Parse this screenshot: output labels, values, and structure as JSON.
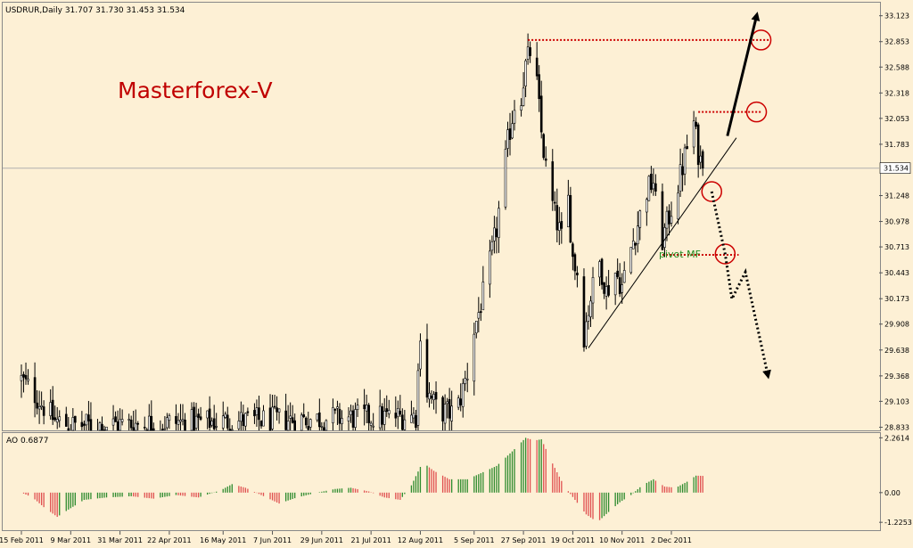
{
  "header": {
    "symbol_info": "USDRUR,Daily  31.707 31.730 31.453 31.534",
    "watermark": "Masterforex-V",
    "pivot_label": "pivot MF",
    "ao_label": "AO 0.6877"
  },
  "colors": {
    "background": "#fdf0d5",
    "candle": "#000000",
    "level_line": "#cc0000",
    "pivot_text": "#1e8a1e",
    "ao_up": "#2e8b2e",
    "ao_down": "#e05050",
    "watermark": "#c00000"
  },
  "chart_data": [
    {
      "type": "candlestick",
      "symbol": "USDRUR",
      "timeframe": "Daily",
      "last_quote": {
        "open": 31.707,
        "high": 31.73,
        "low": 31.453,
        "close": 31.534
      },
      "current_price_label": "31.534",
      "ylim": [
        28.8,
        33.25
      ],
      "y_ticks": [
        {
          "value": 33.123,
          "label": "33.123"
        },
        {
          "value": 32.853,
          "label": "32.853"
        },
        {
          "value": 32.588,
          "label": "32.588"
        },
        {
          "value": 32.318,
          "label": "32.318"
        },
        {
          "value": 32.053,
          "label": "32.053"
        },
        {
          "value": 31.783,
          "label": "31.783"
        },
        {
          "value": 31.248,
          "label": "31.248"
        },
        {
          "value": 30.978,
          "label": "30.978"
        },
        {
          "value": 30.713,
          "label": "30.713"
        },
        {
          "value": 30.443,
          "label": "30.443"
        },
        {
          "value": 30.173,
          "label": "30.173"
        },
        {
          "value": 29.908,
          "label": "29.908"
        },
        {
          "value": 29.638,
          "label": "29.638"
        },
        {
          "value": 29.368,
          "label": "29.368"
        },
        {
          "value": 29.103,
          "label": "29.103"
        },
        {
          "value": 28.833,
          "label": "28.833"
        }
      ],
      "x_ticks": [
        "15 Feb 2011",
        "9 Mar 2011",
        "31 Mar 2011",
        "22 Apr 2011",
        "16 May 2011",
        "7 Jun 2011",
        "29 Jun 2011",
        "21 Jul 2011",
        "12 Aug 2011",
        "5 Sep 2011",
        "27 Sep 2011",
        "19 Oct 2011",
        "10 Nov 2011",
        "2 Dec 2011"
      ],
      "close_path": [
        [
          "15 Feb 2011",
          29.33
        ],
        [
          "20 Feb 2011",
          29.2
        ],
        [
          "25 Feb 2011",
          29.05
        ],
        [
          "2 Mar 2011",
          28.9
        ],
        [
          "9 Mar 2011",
          28.85
        ],
        [
          "10 Aug 2011",
          28.95
        ],
        [
          "12 Aug 2011",
          29.85
        ],
        [
          "15 Aug 2011",
          29.2
        ],
        [
          "20 Aug 2011",
          29.0
        ],
        [
          "28 Aug 2011",
          28.98
        ],
        [
          "2 Sep 2011",
          29.4
        ],
        [
          "5 Sep 2011",
          29.85
        ],
        [
          "10 Sep 2011",
          30.3
        ],
        [
          "15 Sep 2011",
          30.9
        ],
        [
          "20 Sep 2011",
          31.8
        ],
        [
          "23 Sep 2011",
          32.2
        ],
        [
          "26 Sep 2011",
          32.3
        ],
        [
          "28 Sep 2011",
          32.6
        ],
        [
          "30 Sep 2011",
          32.75
        ],
        [
          "3 Oct 2011",
          32.4
        ],
        [
          "5 Oct 2011",
          31.9
        ],
        [
          "8 Oct 2011",
          31.35
        ],
        [
          "11 Oct 2011",
          31.05
        ],
        [
          "14 Oct 2011",
          30.8
        ],
        [
          "17 Oct 2011",
          31.2
        ],
        [
          "19 Oct 2011",
          30.6
        ],
        [
          "21 Oct 2011",
          30.45
        ],
        [
          "24 Oct 2011",
          29.8
        ],
        [
          "27 Oct 2011",
          30.2
        ],
        [
          "31 Oct 2011",
          30.55
        ],
        [
          "3 Nov 2011",
          30.25
        ],
        [
          "7 Nov 2011",
          30.45
        ],
        [
          "10 Nov 2011",
          30.3
        ],
        [
          "14 Nov 2011",
          30.7
        ],
        [
          "17 Nov 2011",
          30.95
        ],
        [
          "21 Nov 2011",
          31.3
        ],
        [
          "24 Nov 2011",
          31.4
        ],
        [
          "27 Nov 2011",
          30.7
        ],
        [
          "30 Nov 2011",
          30.95
        ],
        [
          "3 Dec 2011",
          31.2
        ],
        [
          "6 Dec 2011",
          31.45
        ],
        [
          "9 Dec 2011",
          31.75
        ],
        [
          "12 Dec 2011",
          32.0
        ],
        [
          "14 Dec 2011",
          31.7
        ],
        [
          "16 Dec 2011",
          31.53
        ]
      ],
      "levels": [
        {
          "value": 32.87,
          "from": "29 Sep 2011",
          "to": "15 Jan 2012"
        },
        {
          "value": 32.12,
          "from": "14 Dec 2011",
          "to": "11 Jan 2012"
        },
        {
          "value": 30.63,
          "from": "28 Nov 2011",
          "to": "1 Jan 2012"
        }
      ],
      "trend_line": [
        [
          "26 Oct 2011",
          29.66
        ],
        [
          "31 Dec 2011",
          31.85
        ]
      ],
      "circles": [
        [
          "11 Jan 2012",
          32.87
        ],
        [
          "9 Jan 2012",
          32.12
        ],
        [
          "20 Dec 2011",
          31.29
        ],
        [
          "26 Dec 2011",
          30.64
        ]
      ],
      "bull_arrow": [
        [
          "27 Dec 2011",
          31.87
        ],
        [
          "9 Jan 2012",
          33.12
        ]
      ],
      "bear_path": [
        [
          "20 Dec 2011",
          31.29
        ],
        [
          "26 Dec 2011",
          30.64
        ],
        [
          "29 Dec 2011",
          30.17
        ],
        [
          "4 Jan 2012",
          30.45
        ],
        [
          "14 Jan 2012",
          29.38
        ]
      ]
    },
    {
      "type": "bar",
      "name": "AO",
      "indicator": "Awesome Oscillator",
      "current_value": 0.6877,
      "ylim": [
        -1.55,
        2.42
      ],
      "y_ticks": [
        {
          "value": 2.2614,
          "label": "2.2614"
        },
        {
          "value": 0.0,
          "label": "0.00"
        },
        {
          "value": -1.2253,
          "label": "-1.2253"
        }
      ],
      "path": [
        [
          "15 Feb 2011",
          0.0
        ],
        [
          "20 Feb 2011",
          -0.2
        ],
        [
          "25 Feb 2011",
          -0.6
        ],
        [
          "3 Mar 2011",
          -1.0
        ],
        [
          "8 Mar 2011",
          -0.7
        ],
        [
          "15 Mar 2011",
          -0.3
        ],
        [
          "25 Mar 2011",
          -0.2
        ],
        [
          "5 Apr 2011",
          -0.15
        ],
        [
          "15 Apr 2011",
          -0.25
        ],
        [
          "25 Apr 2011",
          -0.1
        ],
        [
          "5 May 2011",
          -0.2
        ],
        [
          "15 May 2011",
          0.1
        ],
        [
          "20 May 2011",
          0.35
        ],
        [
          "26 May 2011",
          0.2
        ],
        [
          "2 Jun 2011",
          -0.1
        ],
        [
          "10 Jun 2011",
          -0.45
        ],
        [
          "18 Jun 2011",
          -0.2
        ],
        [
          "27 Jun 2011",
          0.0
        ],
        [
          "5 Jul 2011",
          0.15
        ],
        [
          "12 Jul 2011",
          0.2
        ],
        [
          "20 Jul 2011",
          0.05
        ],
        [
          "27 Jul 2011",
          -0.2
        ],
        [
          "3 Aug 2011",
          -0.3
        ],
        [
          "8 Aug 2011",
          0.3
        ],
        [
          "13 Aug 2011",
          1.25
        ],
        [
          "18 Aug 2011",
          0.9
        ],
        [
          "25 Aug 2011",
          0.55
        ],
        [
          "2 Sep 2011",
          0.55
        ],
        [
          "8 Sep 2011",
          0.8
        ],
        [
          "15 Sep 2011",
          1.1
        ],
        [
          "22 Sep 2011",
          1.7
        ],
        [
          "28 Sep 2011",
          2.26
        ],
        [
          "2 Oct 2011",
          2.15
        ],
        [
          "5 Oct 2011",
          2.2
        ],
        [
          "10 Oct 2011",
          1.2
        ],
        [
          "15 Oct 2011",
          0.3
        ],
        [
          "20 Oct 2011",
          -0.3
        ],
        [
          "25 Oct 2011",
          -0.9
        ],
        [
          "30 Oct 2011",
          -1.22
        ],
        [
          "4 Nov 2011",
          -0.8
        ],
        [
          "9 Nov 2011",
          -0.4
        ],
        [
          "14 Nov 2011",
          -0.1
        ],
        [
          "19 Nov 2011",
          0.3
        ],
        [
          "24 Nov 2011",
          0.55
        ],
        [
          "29 Nov 2011",
          0.25
        ],
        [
          "4 Dec 2011",
          0.2
        ],
        [
          "9 Dec 2011",
          0.45
        ],
        [
          "13 Dec 2011",
          0.7
        ],
        [
          "16 Dec 2011",
          0.69
        ]
      ]
    }
  ]
}
